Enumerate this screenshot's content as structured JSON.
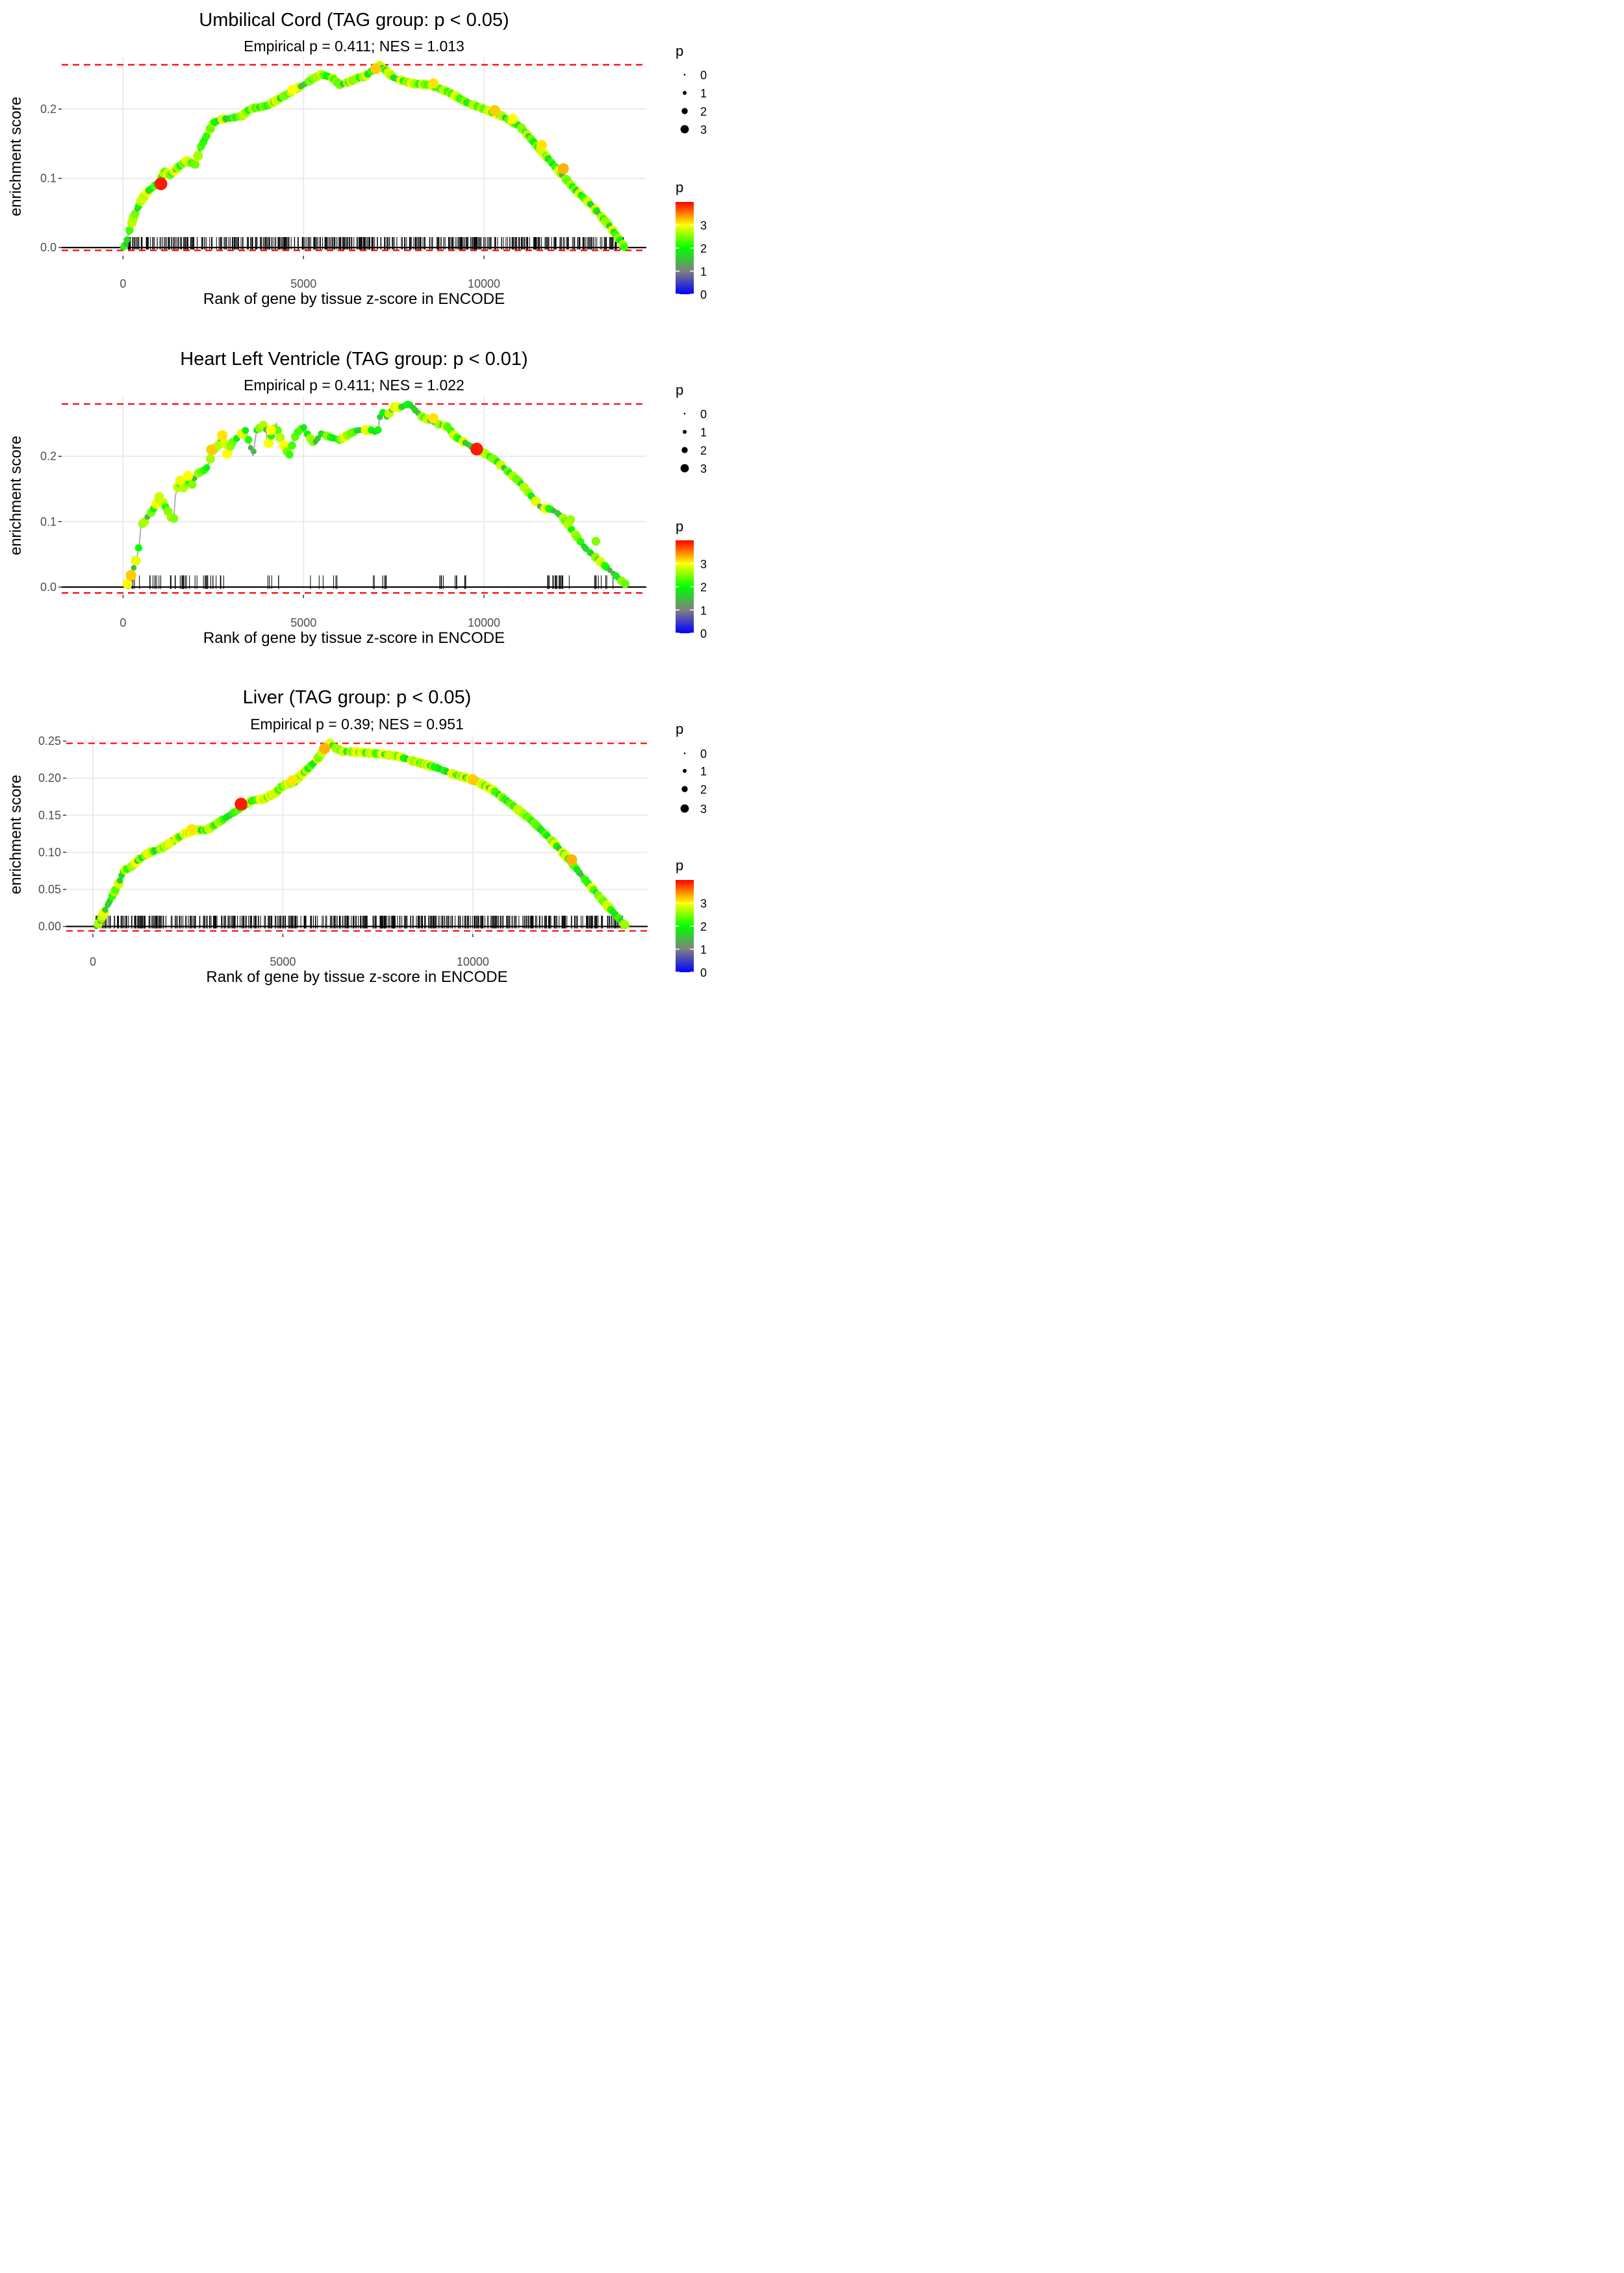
{
  "chart_data": [
    {
      "type": "line",
      "title": "Umbilical Cord (TAG group: p < 0.05)",
      "subtitle": "Empirical p = 0.411; NES = 1.013",
      "xlabel": "Rank of gene by tissue z-score in ENCODE",
      "ylabel": "enrichment score",
      "xlim": [
        -1700,
        14500
      ],
      "ylim": [
        -0.012,
        0.275
      ],
      "x_ticks": [
        0,
        5000,
        10000
      ],
      "x_tick_labels": [
        "0",
        "5000",
        "10000"
      ],
      "y_ticks": [
        0.0,
        0.1,
        0.2
      ],
      "y_tick_labels": [
        "0.0",
        "0.1",
        "0.2"
      ],
      "max_es": 0.264,
      "min_es": -0.004,
      "curve_x": [
        0,
        80,
        150,
        300,
        500,
        700,
        900,
        1000,
        1150,
        1300,
        1500,
        1750,
        2000,
        2150,
        2300,
        2500,
        2700,
        3000,
        3300,
        3500,
        4000,
        4500,
        5000,
        5300,
        5500,
        5800,
        6000,
        6300,
        6500,
        6700,
        7000,
        7100,
        7300,
        7500,
        8000,
        8500,
        9000,
        9500,
        10000,
        10500,
        11000,
        11500,
        12000,
        12500,
        13000,
        13500,
        13900
      ],
      "curve_y": [
        0.0,
        0.005,
        0.02,
        0.045,
        0.068,
        0.082,
        0.09,
        0.095,
        0.11,
        0.105,
        0.115,
        0.125,
        0.12,
        0.145,
        0.16,
        0.18,
        0.185,
        0.187,
        0.19,
        0.2,
        0.205,
        0.22,
        0.235,
        0.245,
        0.25,
        0.245,
        0.235,
        0.24,
        0.245,
        0.247,
        0.26,
        0.263,
        0.255,
        0.245,
        0.237,
        0.235,
        0.225,
        0.21,
        0.2,
        0.19,
        0.175,
        0.145,
        0.115,
        0.085,
        0.06,
        0.03,
        0.0
      ],
      "hits": {
        "kind": "dense",
        "count": 520,
        "min_rank": 80,
        "max_rank": 13900
      },
      "highlight_points": [
        {
          "x": 1050,
          "y": 0.092,
          "p": 3.9
        },
        {
          "x": 7000,
          "y": 0.258,
          "p": 3.2
        },
        {
          "x": 4700,
          "y": 0.228,
          "p": 3.0
        },
        {
          "x": 8600,
          "y": 0.237,
          "p": 3.1
        },
        {
          "x": 10300,
          "y": 0.198,
          "p": 3.2
        },
        {
          "x": 10800,
          "y": 0.186,
          "p": 3.0
        },
        {
          "x": 11600,
          "y": 0.148,
          "p": 3.1
        },
        {
          "x": 12200,
          "y": 0.114,
          "p": 3.3
        }
      ],
      "size_legend": {
        "title": "p",
        "labels": [
          "0",
          "1",
          "2",
          "3"
        ]
      },
      "color_legend": {
        "title": "p",
        "labels": [
          "3",
          "2",
          "1",
          "0"
        ],
        "range": [
          0,
          4
        ]
      }
    },
    {
      "type": "line",
      "title": "Heart Left Ventricle (TAG group: p < 0.01)",
      "subtitle": "Empirical p = 0.411; NES = 1.022",
      "xlabel": "Rank of gene by tissue z-score in ENCODE",
      "ylabel": "enrichment score",
      "xlim": [
        -1700,
        14500
      ],
      "ylim": [
        -0.012,
        0.292
      ],
      "x_ticks": [
        0,
        5000,
        10000
      ],
      "x_tick_labels": [
        "0",
        "5000",
        "10000"
      ],
      "y_ticks": [
        0.0,
        0.1,
        0.2
      ],
      "y_tick_labels": [
        "0.0",
        "0.1",
        "0.2"
      ],
      "max_es": 0.28,
      "min_es": -0.009,
      "curve_x": [
        120,
        200,
        300,
        400,
        450,
        500,
        600,
        700,
        800,
        900,
        1000,
        1100,
        1400,
        1450,
        1550,
        1700,
        1800,
        1900,
        2000,
        2100,
        2300,
        2450,
        2500,
        2700,
        2750,
        2900,
        3000,
        3200,
        3400,
        3600,
        3700,
        3950,
        4000,
        4200,
        4250,
        4300,
        4600,
        4700,
        4800,
        5000,
        5150,
        5300,
        5500,
        5700,
        6000,
        6300,
        6500,
        6700,
        6900,
        7050,
        7100,
        7150,
        7300,
        7500,
        7700,
        7900,
        8000,
        8100,
        8300,
        8500,
        8700,
        9000,
        9200,
        9500,
        9800,
        10000,
        10300,
        10600,
        11000,
        11300,
        11600,
        11800,
        12000,
        12200,
        12400,
        12600,
        12800,
        13000,
        13200,
        13400,
        13600,
        13800,
        13900
      ],
      "curve_y": [
        0.005,
        0.015,
        0.03,
        0.05,
        0.065,
        0.095,
        0.1,
        0.11,
        0.115,
        0.125,
        0.135,
        0.13,
        0.1,
        0.14,
        0.16,
        0.15,
        0.165,
        0.155,
        0.17,
        0.175,
        0.18,
        0.2,
        0.21,
        0.22,
        0.23,
        0.2,
        0.22,
        0.23,
        0.24,
        0.2,
        0.24,
        0.25,
        0.215,
        0.245,
        0.25,
        0.235,
        0.2,
        0.22,
        0.235,
        0.245,
        0.23,
        0.22,
        0.235,
        0.23,
        0.225,
        0.235,
        0.24,
        0.24,
        0.24,
        0.235,
        0.255,
        0.27,
        0.26,
        0.275,
        0.275,
        0.28,
        0.277,
        0.27,
        0.26,
        0.255,
        0.25,
        0.245,
        0.23,
        0.22,
        0.21,
        0.205,
        0.195,
        0.18,
        0.16,
        0.14,
        0.12,
        0.12,
        0.115,
        0.105,
        0.09,
        0.075,
        0.06,
        0.05,
        0.04,
        0.03,
        0.02,
        0.01,
        0.005
      ],
      "hits": {
        "kind": "sparse",
        "clusters": [
          [
            100,
            1100,
            18
          ],
          [
            1300,
            2100,
            16
          ],
          [
            2200,
            2800,
            14
          ],
          [
            4000,
            4400,
            5
          ],
          [
            5000,
            6000,
            6
          ],
          [
            6900,
            7300,
            6
          ],
          [
            8500,
            9500,
            10
          ],
          [
            11700,
            12400,
            18
          ],
          [
            13000,
            13600,
            8
          ]
        ]
      },
      "highlight_points": [
        {
          "x": 220,
          "y": 0.018,
          "p": 3.2
        },
        {
          "x": 1000,
          "y": 0.138,
          "p": 2.8
        },
        {
          "x": 1580,
          "y": 0.163,
          "p": 2.9
        },
        {
          "x": 1800,
          "y": 0.17,
          "p": 3.0
        },
        {
          "x": 2450,
          "y": 0.21,
          "p": 3.2
        },
        {
          "x": 2750,
          "y": 0.232,
          "p": 3.1
        },
        {
          "x": 4100,
          "y": 0.24,
          "p": 3.0
        },
        {
          "x": 8600,
          "y": 0.258,
          "p": 3.1
        },
        {
          "x": 9800,
          "y": 0.211,
          "p": 3.9
        },
        {
          "x": 12400,
          "y": 0.103,
          "p": 2.6
        },
        {
          "x": 13100,
          "y": 0.07,
          "p": 2.5
        }
      ],
      "size_legend": {
        "title": "p",
        "labels": [
          "0",
          "1",
          "2",
          "3"
        ]
      },
      "color_legend": {
        "title": "p",
        "labels": [
          "3",
          "2",
          "1",
          "0"
        ],
        "range": [
          0,
          4
        ]
      }
    },
    {
      "type": "line",
      "title": "Liver (TAG group: p < 0.05)",
      "subtitle": "Empirical p = 0.39; NES = 0.951",
      "xlabel": "Rank of gene by tissue z-score in ENCODE",
      "ylabel": "enrichment score",
      "xlim": [
        -700,
        14600
      ],
      "ylim": [
        -0.01,
        0.258
      ],
      "x_ticks": [
        0,
        5000,
        10000
      ],
      "x_tick_labels": [
        "0",
        "5000",
        "10000"
      ],
      "y_ticks": [
        0.0,
        0.05,
        0.1,
        0.15,
        0.2,
        0.25
      ],
      "y_tick_labels": [
        "0.00",
        "0.05",
        "0.10",
        "0.15",
        "0.20",
        "0.25"
      ],
      "max_es": 0.247,
      "min_es": -0.006,
      "curve_x": [
        100,
        200,
        300,
        400,
        500,
        600,
        700,
        800,
        1000,
        1200,
        1500,
        1800,
        2100,
        2400,
        2700,
        3000,
        3300,
        3600,
        3900,
        4200,
        4500,
        4800,
        5000,
        5300,
        5600,
        5900,
        6100,
        6250,
        6400,
        6600,
        7000,
        7500,
        8000,
        8500,
        9000,
        9500,
        10000,
        10500,
        11000,
        11500,
        12000,
        12500,
        13000,
        13500,
        14000
      ],
      "curve_y": [
        0.0,
        0.008,
        0.02,
        0.03,
        0.04,
        0.05,
        0.06,
        0.075,
        0.08,
        0.09,
        0.1,
        0.105,
        0.115,
        0.125,
        0.13,
        0.13,
        0.14,
        0.15,
        0.16,
        0.17,
        0.172,
        0.18,
        0.19,
        0.195,
        0.21,
        0.225,
        0.24,
        0.247,
        0.24,
        0.236,
        0.235,
        0.233,
        0.23,
        0.222,
        0.215,
        0.205,
        0.198,
        0.185,
        0.165,
        0.145,
        0.12,
        0.092,
        0.06,
        0.03,
        0.002
      ],
      "hits": {
        "kind": "dense",
        "count": 520,
        "min_rank": 80,
        "max_rank": 13950
      },
      "highlight_points": [
        {
          "x": 2000,
          "y": 0.112,
          "p": 2.9
        },
        {
          "x": 2600,
          "y": 0.131,
          "p": 3.1
        },
        {
          "x": 3900,
          "y": 0.165,
          "p": 3.9
        },
        {
          "x": 5250,
          "y": 0.197,
          "p": 3.1
        },
        {
          "x": 6100,
          "y": 0.24,
          "p": 3.3
        },
        {
          "x": 7800,
          "y": 0.231,
          "p": 2.8
        },
        {
          "x": 10000,
          "y": 0.198,
          "p": 3.2
        },
        {
          "x": 12600,
          "y": 0.09,
          "p": 3.3
        }
      ],
      "size_legend": {
        "title": "p",
        "labels": [
          "0",
          "1",
          "2",
          "3"
        ]
      },
      "color_legend": {
        "title": "p",
        "labels": [
          "3",
          "2",
          "1",
          "0"
        ],
        "range": [
          0,
          4
        ]
      }
    }
  ]
}
